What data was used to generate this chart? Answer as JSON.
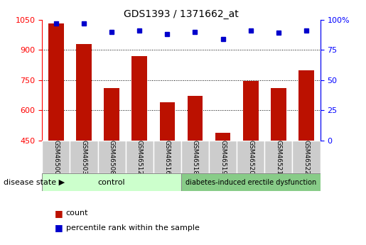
{
  "title": "GDS1393 / 1371662_at",
  "samples": [
    "GSM46500",
    "GSM46503",
    "GSM46508",
    "GSM46512",
    "GSM46516",
    "GSM46518",
    "GSM46519",
    "GSM46520",
    "GSM46521",
    "GSM46522"
  ],
  "counts": [
    1030,
    930,
    710,
    870,
    640,
    670,
    490,
    745,
    710,
    800
  ],
  "percentiles": [
    97,
    97,
    90,
    91,
    88,
    90,
    84,
    91,
    89,
    91
  ],
  "ylim_left": [
    450,
    1050
  ],
  "ylim_right": [
    0,
    100
  ],
  "yticks_left": [
    450,
    600,
    750,
    900,
    1050
  ],
  "yticks_right": [
    0,
    25,
    50,
    75,
    100
  ],
  "control_count": 5,
  "disease_count": 5,
  "control_label": "control",
  "disease_label": "diabetes-induced erectile dysfunction",
  "bar_color": "#bb1100",
  "dot_color": "#0000cc",
  "control_bg": "#ccffcc",
  "disease_bg": "#88cc88",
  "label_bg": "#cccccc",
  "legend_count_label": "count",
  "legend_pct_label": "percentile rank within the sample",
  "disease_state_label": "disease state"
}
